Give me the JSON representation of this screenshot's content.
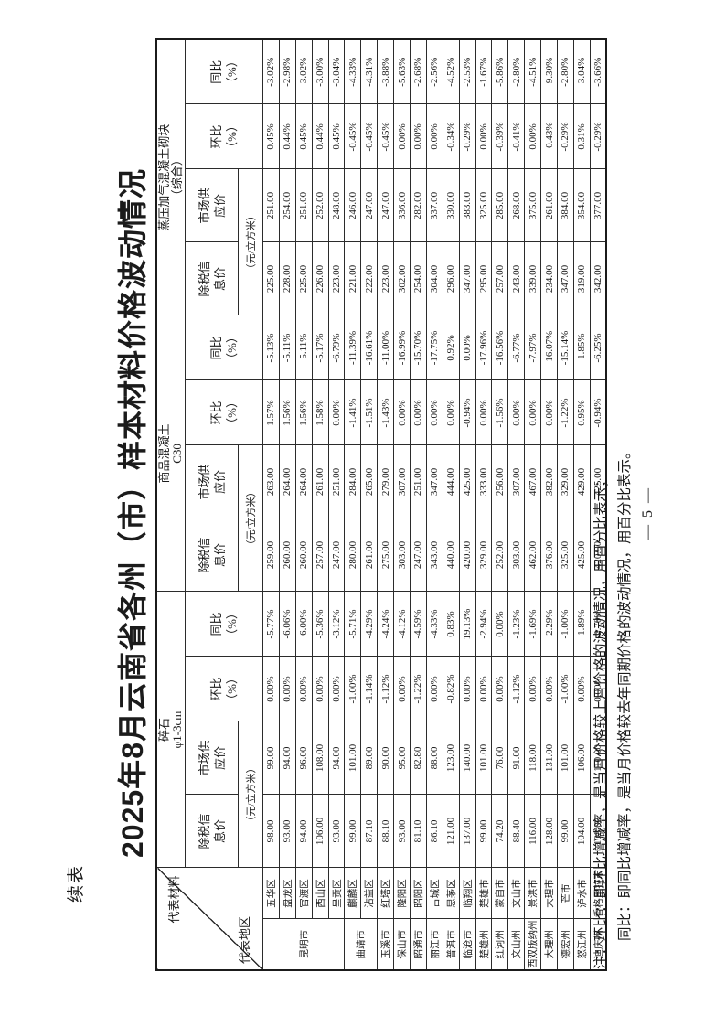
{
  "page": {
    "continuation_label": "续表",
    "title": "2025年8月云南省各州（市）样本材料价格波动情况",
    "page_number": "— 5 —",
    "notes": [
      "注：环比：即环比增减率，是当月价格较上月价格的波动情况，用百分比表示；",
      "同比：即同比增减率，是当月价格较去年同期价格的波动情况，用百分比表示。"
    ]
  },
  "table": {
    "corner": {
      "top": "代表材料",
      "bottom": "代表地区"
    },
    "groups": [
      {
        "label": "碎石\nφ1-3cm"
      },
      {
        "label": "商品混凝土\nC30"
      },
      {
        "label": "蒸压加气混凝土砌块\n（综合）"
      }
    ],
    "sub_headers": {
      "info_price": "除税信\n息价",
      "market_price": "市场供\n应价",
      "unit": "（元/立方米）",
      "mom": "环比\n（%）",
      "yoy": "同比\n（%）"
    },
    "rows": [
      {
        "region": "昆明市",
        "region_span": 5,
        "district": "五华区",
        "values": [
          "98.00",
          "99.00",
          "0.00%",
          "-5.77%",
          "259.00",
          "263.00",
          "1.57%",
          "-5.13%",
          "225.00",
          "251.00",
          "0.45%",
          "-3.02%"
        ]
      },
      {
        "district": "盘龙区",
        "values": [
          "93.00",
          "94.00",
          "0.00%",
          "-6.06%",
          "260.00",
          "264.00",
          "1.56%",
          "-5.11%",
          "228.00",
          "254.00",
          "0.44%",
          "-2.98%"
        ]
      },
      {
        "district": "官渡区",
        "values": [
          "94.00",
          "96.00",
          "0.00%",
          "-6.00%",
          "260.00",
          "264.00",
          "1.56%",
          "-5.11%",
          "225.00",
          "251.00",
          "0.45%",
          "-3.02%"
        ]
      },
      {
        "district": "西山区",
        "values": [
          "106.00",
          "108.00",
          "0.00%",
          "-5.36%",
          "257.00",
          "261.00",
          "1.58%",
          "-5.17%",
          "226.00",
          "252.00",
          "0.44%",
          "-3.00%"
        ]
      },
      {
        "district": "呈贡区",
        "values": [
          "93.00",
          "94.00",
          "0.00%",
          "-3.12%",
          "247.00",
          "251.00",
          "0.00%",
          "-6.79%",
          "223.00",
          "248.00",
          "0.45%",
          "-3.04%"
        ]
      },
      {
        "region": "曲靖市",
        "region_span": 2,
        "district": "麒麟区",
        "values": [
          "99.00",
          "101.00",
          "-1.00%",
          "-5.71%",
          "280.00",
          "284.00",
          "-1.41%",
          "-11.39%",
          "221.00",
          "246.00",
          "-0.45%",
          "-4.33%"
        ]
      },
      {
        "district": "沾益区",
        "values": [
          "87.10",
          "89.00",
          "-1.14%",
          "-4.29%",
          "261.00",
          "265.00",
          "-1.51%",
          "-16.61%",
          "222.00",
          "247.00",
          "-0.45%",
          "-4.31%"
        ]
      },
      {
        "region": "玉溪市",
        "region_span": 1,
        "district": "红塔区",
        "values": [
          "88.10",
          "90.00",
          "-1.12%",
          "-4.24%",
          "275.00",
          "279.00",
          "-1.43%",
          "-11.00%",
          "223.00",
          "247.00",
          "-0.45%",
          "-3.88%"
        ]
      },
      {
        "region": "保山市",
        "region_span": 1,
        "district": "隆阳区",
        "values": [
          "93.00",
          "95.00",
          "0.00%",
          "-4.12%",
          "303.00",
          "307.00",
          "0.00%",
          "-16.99%",
          "302.00",
          "336.00",
          "0.00%",
          "-5.63%"
        ]
      },
      {
        "region": "昭通市",
        "region_span": 1,
        "district": "昭阳区",
        "values": [
          "81.10",
          "82.80",
          "-1.22%",
          "-4.59%",
          "247.00",
          "251.00",
          "0.00%",
          "-15.70%",
          "254.00",
          "282.00",
          "0.00%",
          "-2.68%"
        ]
      },
      {
        "region": "丽江市",
        "region_span": 1,
        "district": "古城区",
        "values": [
          "86.10",
          "88.00",
          "0.00%",
          "-4.33%",
          "343.00",
          "347.00",
          "0.00%",
          "-17.75%",
          "304.00",
          "337.00",
          "0.00%",
          "-2.56%"
        ]
      },
      {
        "region": "普洱市",
        "region_span": 1,
        "district": "思茅区",
        "values": [
          "121.00",
          "123.00",
          "-0.82%",
          "0.83%",
          "440.00",
          "444.00",
          "0.00%",
          "0.92%",
          "296.00",
          "330.00",
          "-0.34%",
          "-4.52%"
        ]
      },
      {
        "region": "临沧市",
        "region_span": 1,
        "district": "临翔区",
        "values": [
          "137.00",
          "140.00",
          "0.00%",
          "19.13%",
          "420.00",
          "425.00",
          "-0.94%",
          "0.00%",
          "347.00",
          "383.00",
          "-0.29%",
          "-2.53%"
        ]
      },
      {
        "region": "楚雄州",
        "region_span": 1,
        "district": "楚雄市",
        "values": [
          "99.00",
          "101.00",
          "0.00%",
          "-2.94%",
          "329.00",
          "333.00",
          "0.00%",
          "-17.96%",
          "295.00",
          "325.00",
          "0.00%",
          "-1.67%"
        ]
      },
      {
        "region": "红河州",
        "region_span": 1,
        "district": "蒙自市",
        "values": [
          "74.20",
          "76.00",
          "0.00%",
          "0.00%",
          "252.00",
          "256.00",
          "-1.56%",
          "-16.56%",
          "257.00",
          "285.00",
          "-0.39%",
          "-5.86%"
        ]
      },
      {
        "region": "文山州",
        "region_span": 1,
        "district": "文山市",
        "values": [
          "88.40",
          "91.00",
          "-1.12%",
          "-1.23%",
          "303.00",
          "307.00",
          "0.00%",
          "-6.77%",
          "243.00",
          "268.00",
          "-0.41%",
          "-2.80%"
        ]
      },
      {
        "region": "西双版纳州",
        "region_span": 1,
        "district": "景洪市",
        "values": [
          "116.00",
          "118.00",
          "0.00%",
          "-1.69%",
          "462.00",
          "467.00",
          "0.00%",
          "-7.97%",
          "339.00",
          "375.00",
          "0.00%",
          "-4.51%"
        ]
      },
      {
        "region": "大理州",
        "region_span": 1,
        "district": "大理市",
        "values": [
          "128.00",
          "131.00",
          "0.00%",
          "-2.29%",
          "376.00",
          "382.00",
          "0.00%",
          "-16.07%",
          "234.00",
          "261.00",
          "-0.43%",
          "-9.30%"
        ]
      },
      {
        "region": "德宏州",
        "region_span": 1,
        "district": "芒市",
        "values": [
          "99.00",
          "101.00",
          "-1.00%",
          "-1.00%",
          "325.00",
          "329.00",
          "-1.22%",
          "-15.14%",
          "347.00",
          "384.00",
          "-0.29%",
          "-2.80%"
        ]
      },
      {
        "region": "怒江州",
        "region_span": 1,
        "district": "泸水市",
        "values": [
          "104.00",
          "106.00",
          "0.00%",
          "-1.89%",
          "425.00",
          "429.00",
          "0.95%",
          "-1.85%",
          "319.00",
          "354.00",
          "0.31%",
          "-3.04%"
        ]
      },
      {
        "region": "迪庆州",
        "region_span": 1,
        "district": "香格里拉市",
        "values": [
          "108.00",
          "110.00",
          "0.00%",
          "-2.70%",
          "420.00",
          "425.00",
          "-0.94%",
          "-6.25%",
          "342.00",
          "377.00",
          "-0.29%",
          "-3.66%"
        ]
      }
    ]
  }
}
